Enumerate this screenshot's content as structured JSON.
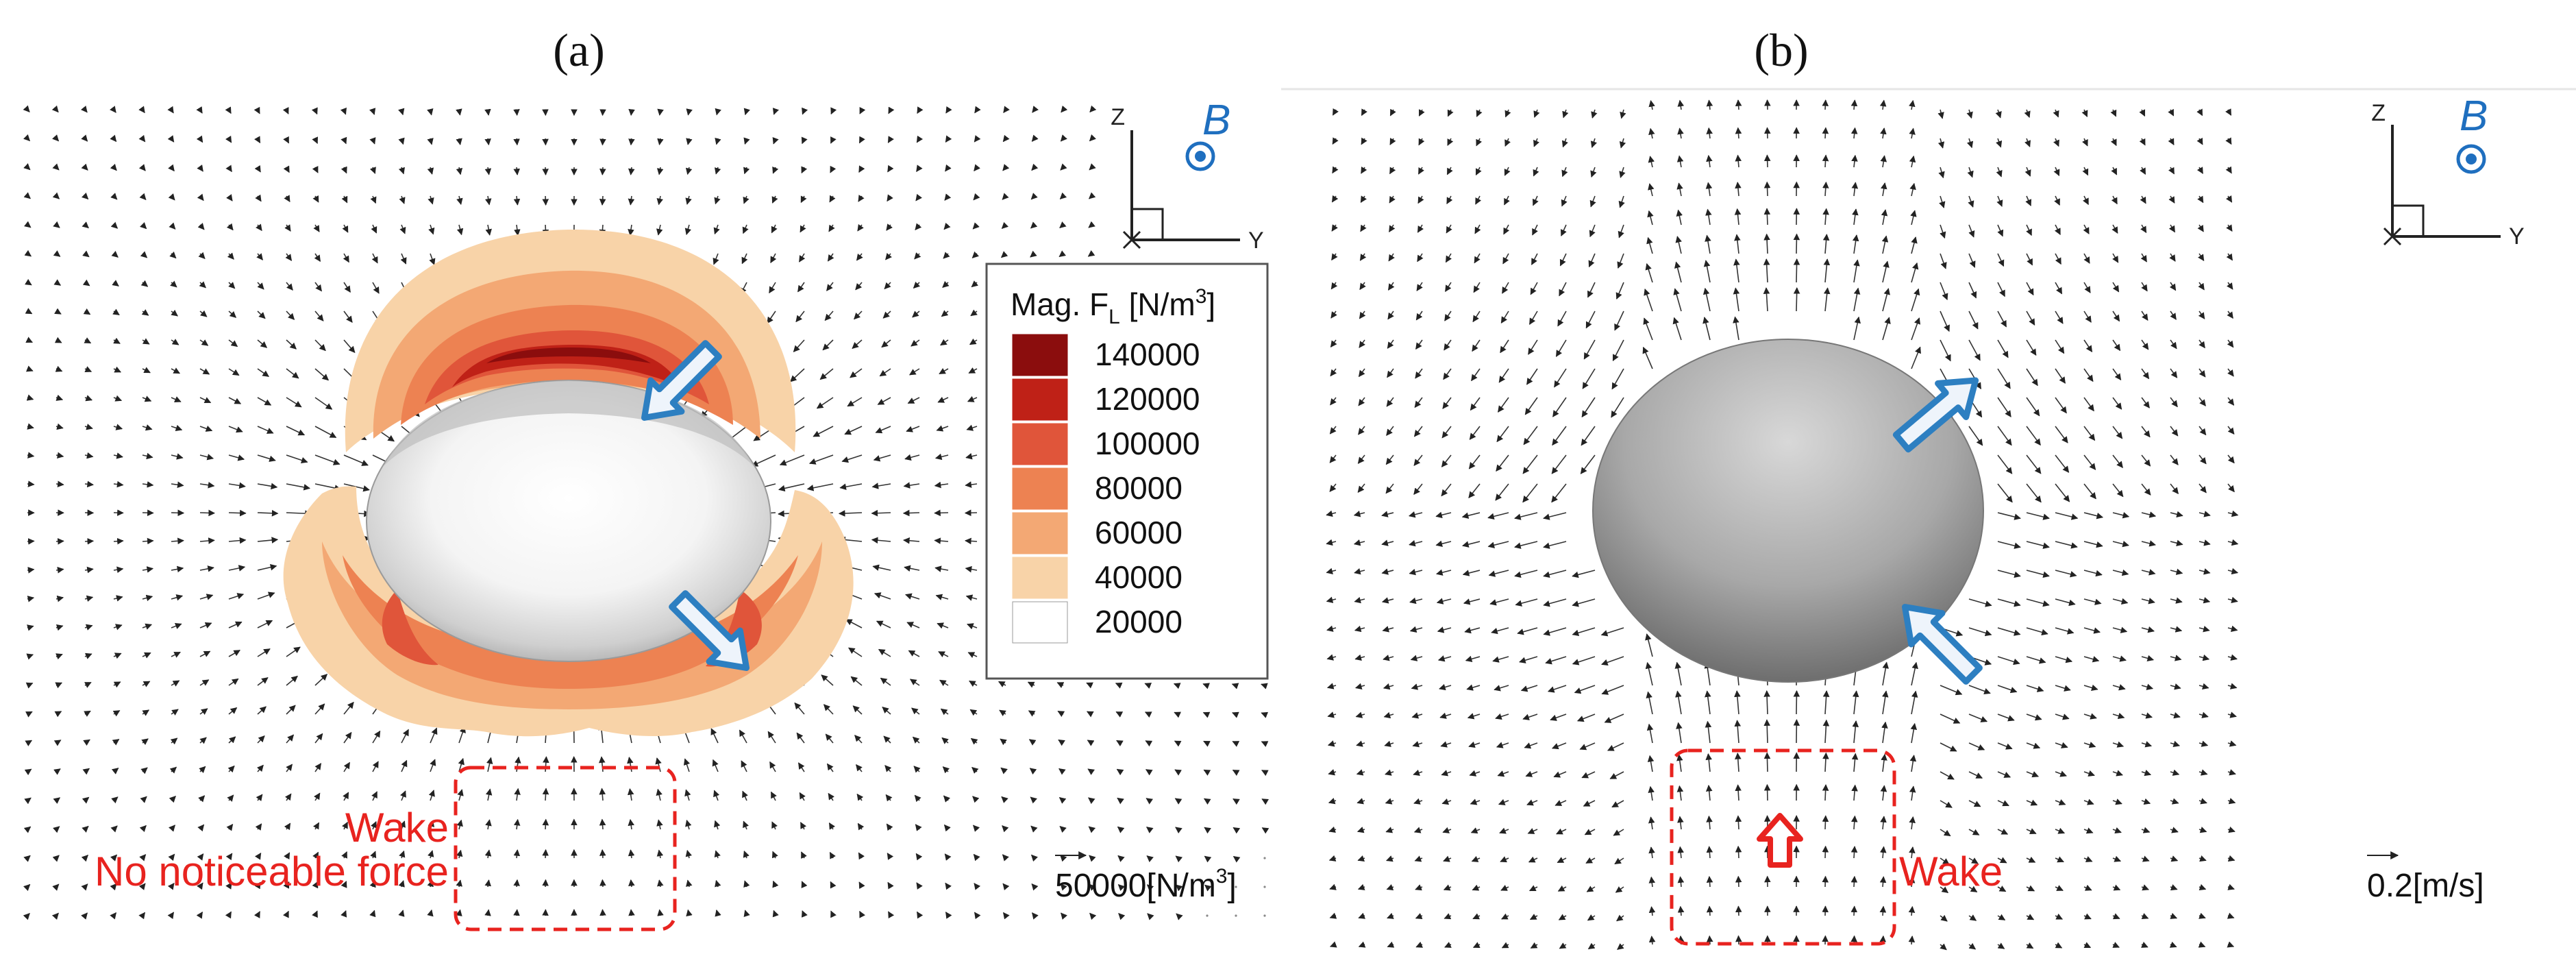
{
  "panels": {
    "a": {
      "label": "(a)",
      "axes": {
        "z": "Z",
        "y": "Y",
        "field": "B"
      },
      "legend": {
        "title_prefix": "Mag. F",
        "title_sub": "L",
        "title_suffix": " [N/m",
        "title_sup": "3",
        "title_end": "]",
        "levels": [
          {
            "value": "140000",
            "color": "#8b0d0d"
          },
          {
            "value": "120000",
            "color": "#bf2117"
          },
          {
            "value": "100000",
            "color": "#e0553a"
          },
          {
            "value": "80000",
            "color": "#ed8252"
          },
          {
            "value": "60000",
            "color": "#f3a874"
          },
          {
            "value": "40000",
            "color": "#f8d3a8"
          },
          {
            "value": "20000",
            "color": "#ffffff"
          }
        ]
      },
      "wake_label": "Wake",
      "no_force_label": "No noticeable force",
      "scale_value": "50000[N/m",
      "scale_sup": "3",
      "scale_end": "]"
    },
    "b": {
      "label": "(b)",
      "axes": {
        "z": "Z",
        "y": "Y",
        "field": "B"
      },
      "wake_label": "Wake",
      "scale_value": "0.2[m/s]"
    }
  },
  "colors": {
    "annotation_red": "#e8231f",
    "arrow_blue": "#2d7fc1",
    "field_blue": "#1f6fbf"
  }
}
